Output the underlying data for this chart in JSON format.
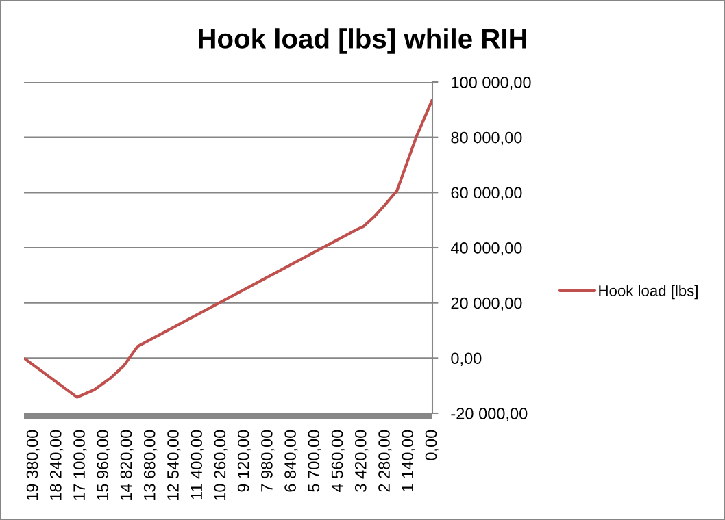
{
  "chart_data": {
    "type": "line",
    "title": "Hook load [lbs] while RIH",
    "x": [
      19850,
      17270,
      16440,
      15670,
      15000,
      14330,
      3720,
      3330,
      2780,
      2330,
      1720,
      780,
      0
    ],
    "series": [
      {
        "name": "Hook load [lbs]",
        "color": "#c0504d",
        "values": [
          0,
          -14200,
          -11500,
          -7400,
          -2800,
          4200,
          46400,
          47800,
          51600,
          55300,
          60700,
          80200,
          93700
        ]
      }
    ],
    "xlim": [
      19850,
      0
    ],
    "xticks": [
      {
        "value": 19380,
        "label": "19 380,00"
      },
      {
        "value": 18240,
        "label": "18 240,00"
      },
      {
        "value": 17100,
        "label": "17 100,00"
      },
      {
        "value": 15960,
        "label": "15 960,00"
      },
      {
        "value": 14820,
        "label": "14 820,00"
      },
      {
        "value": 13680,
        "label": "13 680,00"
      },
      {
        "value": 12540,
        "label": "12 540,00"
      },
      {
        "value": 11400,
        "label": "11 400,00"
      },
      {
        "value": 10260,
        "label": "10 260,00"
      },
      {
        "value": 9120,
        "label": "9 120,00"
      },
      {
        "value": 7980,
        "label": "7 980,00"
      },
      {
        "value": 6840,
        "label": "6 840,00"
      },
      {
        "value": 5700,
        "label": "5 700,00"
      },
      {
        "value": 4560,
        "label": "4 560,00"
      },
      {
        "value": 3420,
        "label": "3 420,00"
      },
      {
        "value": 2280,
        "label": "2 280,00"
      },
      {
        "value": 1140,
        "label": "1 140,00"
      },
      {
        "value": 0,
        "label": "0,00"
      }
    ],
    "ylim": [
      -20000,
      100000
    ],
    "yticks": [
      {
        "value": -20000,
        "label": "-20 000,00"
      },
      {
        "value": 0,
        "label": "0,00"
      },
      {
        "value": 20000,
        "label": "20 000,00"
      },
      {
        "value": 40000,
        "label": "40 000,00"
      },
      {
        "value": 60000,
        "label": "60 000,00"
      },
      {
        "value": 80000,
        "label": "80 000,00"
      },
      {
        "value": 100000,
        "label": "100 000,00"
      }
    ],
    "grid": "y",
    "legend": "right",
    "line_style": "solid"
  }
}
